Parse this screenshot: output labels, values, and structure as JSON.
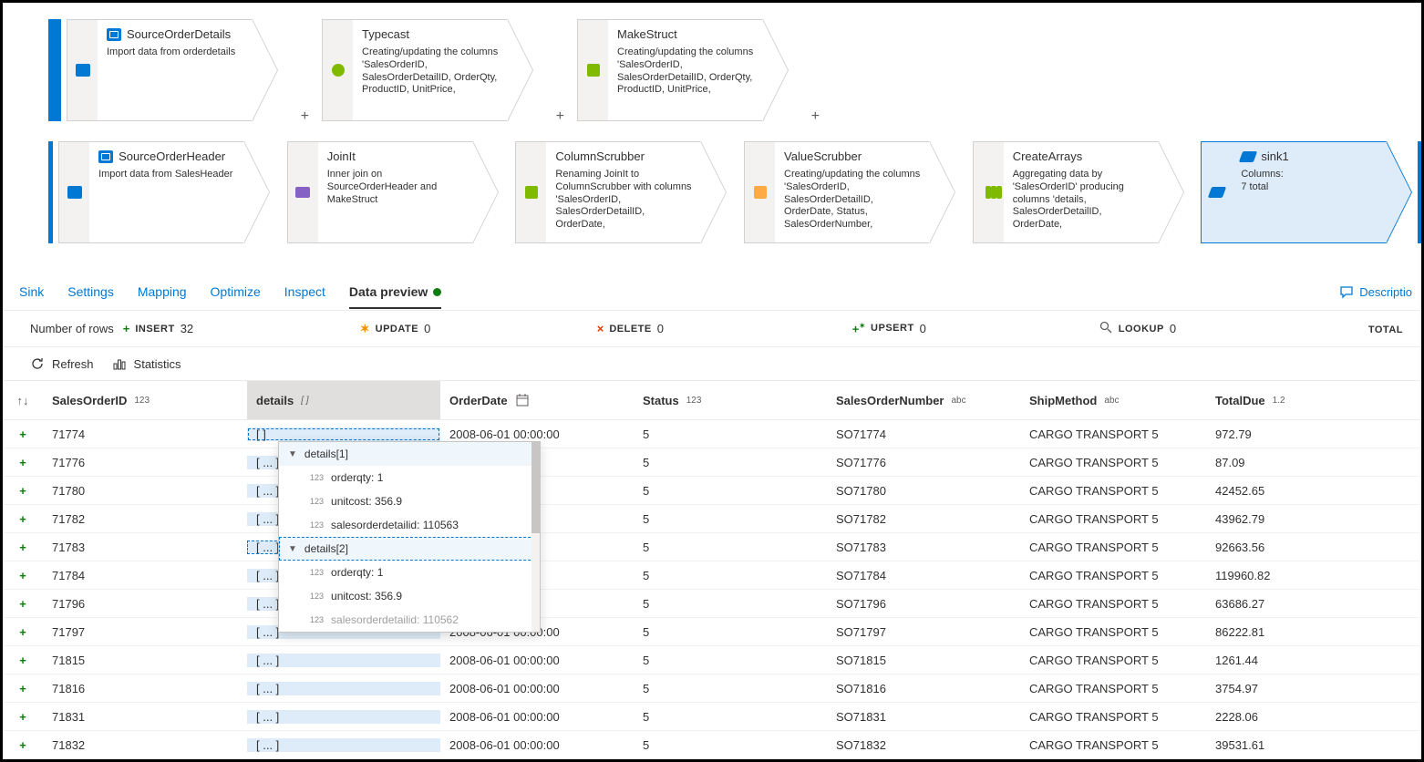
{
  "flow": {
    "rows": [
      {
        "nodes": [
          {
            "title": "SourceOrderDetails",
            "desc": "Import data from orderdetails",
            "icon": "source",
            "badge": "import"
          },
          {
            "title": "Typecast",
            "desc": "Creating/updating the columns 'SalesOrderID, SalesOrderDetailID, OrderQty, ProductID, UnitPrice,",
            "icon": "none",
            "badge": "typecast"
          },
          {
            "title": "MakeStruct",
            "desc": "Creating/updating the columns 'SalesOrderID, SalesOrderDetailID, OrderQty, ProductID, UnitPrice,",
            "icon": "none",
            "badge": "struct"
          }
        ]
      },
      {
        "nodes": [
          {
            "title": "SourceOrderHeader",
            "desc": "Import data from SalesHeader",
            "icon": "source",
            "badge": "import"
          },
          {
            "title": "JoinIt",
            "desc": "Inner join on SourceOrderHeader and MakeStruct",
            "icon": "none",
            "badge": "join"
          },
          {
            "title": "ColumnScrubber",
            "desc": "Renaming JoinIt to ColumnScrubber with columns 'SalesOrderID, SalesOrderDetailID, OrderDate,",
            "icon": "none",
            "badge": "col"
          },
          {
            "title": "ValueScrubber",
            "desc": "Creating/updating the columns 'SalesOrderID, SalesOrderDetailID, OrderDate, Status, SalesOrderNumber,",
            "icon": "none",
            "badge": "val"
          },
          {
            "title": "CreateArrays",
            "desc": "Aggregating data by 'SalesOrderID' producing columns 'details, SalesOrderDetailID, OrderDate,",
            "icon": "none",
            "badge": "agg"
          },
          {
            "title": "sink1",
            "desc": "Columns:\n7 total",
            "icon": "sink",
            "badge": "sink",
            "selected": true
          }
        ]
      }
    ]
  },
  "tabs": {
    "items": [
      "Sink",
      "Settings",
      "Mapping",
      "Optimize",
      "Inspect",
      "Data preview"
    ],
    "active": 5,
    "description_link": "Descriptio"
  },
  "stats": {
    "rows_label": "Number of rows",
    "insert": {
      "label": "INSERT",
      "value": "32"
    },
    "update": {
      "label": "UPDATE",
      "value": "0"
    },
    "delete": {
      "label": "DELETE",
      "value": "0"
    },
    "upsert": {
      "label": "UPSERT",
      "value": "0"
    },
    "lookup": {
      "label": "LOOKUP",
      "value": "0"
    },
    "total_label": "TOTAL"
  },
  "toolbar": {
    "refresh": "Refresh",
    "statistics": "Statistics"
  },
  "columns": [
    {
      "name": "SalesOrderID",
      "type": "123"
    },
    {
      "name": "details",
      "type": "[ ]"
    },
    {
      "name": "OrderDate",
      "type": "date"
    },
    {
      "name": "Status",
      "type": "123"
    },
    {
      "name": "SalesOrderNumber",
      "type": "abc"
    },
    {
      "name": "ShipMethod",
      "type": "abc"
    },
    {
      "name": "TotalDue",
      "type": "1.2"
    }
  ],
  "rows": [
    {
      "id": "71774",
      "details": "[     ]",
      "date": "2008-06-01 00:00:00",
      "status": "5",
      "son": "SO71774",
      "ship": "CARGO TRANSPORT 5",
      "due": "972.79",
      "active": true
    },
    {
      "id": "71776",
      "details": "[ ... ]",
      "date": "00:00",
      "status": "5",
      "son": "SO71776",
      "ship": "CARGO TRANSPORT 5",
      "due": "87.09"
    },
    {
      "id": "71780",
      "details": "[ ... ]",
      "date": "00:00",
      "status": "5",
      "son": "SO71780",
      "ship": "CARGO TRANSPORT 5",
      "due": "42452.65"
    },
    {
      "id": "71782",
      "details": "[ ... ]",
      "date": "00:00",
      "status": "5",
      "son": "SO71782",
      "ship": "CARGO TRANSPORT 5",
      "due": "43962.79"
    },
    {
      "id": "71783",
      "details": "[ ... ]",
      "date": "00:00",
      "status": "5",
      "son": "SO71783",
      "ship": "CARGO TRANSPORT 5",
      "due": "92663.56",
      "sep": true
    },
    {
      "id": "71784",
      "details": "[ ... ]",
      "date": "00:00",
      "status": "5",
      "son": "SO71784",
      "ship": "CARGO TRANSPORT 5",
      "due": "119960.82"
    },
    {
      "id": "71796",
      "details": "[ ... ]",
      "date": "00:00",
      "status": "5",
      "son": "SO71796",
      "ship": "CARGO TRANSPORT 5",
      "due": "63686.27"
    },
    {
      "id": "71797",
      "details": "[ ... ]",
      "date": "2008-06-01 00:00:00",
      "status": "5",
      "son": "SO71797",
      "ship": "CARGO TRANSPORT 5",
      "due": "86222.81"
    },
    {
      "id": "71815",
      "details": "[ ... ]",
      "date": "2008-06-01 00:00:00",
      "status": "5",
      "son": "SO71815",
      "ship": "CARGO TRANSPORT 5",
      "due": "1261.44"
    },
    {
      "id": "71816",
      "details": "[ ... ]",
      "date": "2008-06-01 00:00:00",
      "status": "5",
      "son": "SO71816",
      "ship": "CARGO TRANSPORT 5",
      "due": "3754.97"
    },
    {
      "id": "71831",
      "details": "[ ... ]",
      "date": "2008-06-01 00:00:00",
      "status": "5",
      "son": "SO71831",
      "ship": "CARGO TRANSPORT 5",
      "due": "2228.06"
    },
    {
      "id": "71832",
      "details": "[ ... ]",
      "date": "2008-06-01 00:00:00",
      "status": "5",
      "son": "SO71832",
      "ship": "CARGO TRANSPORT 5",
      "due": "39531.61"
    }
  ],
  "popover": {
    "header1": "details[1]",
    "items1": [
      {
        "k": "orderqty:",
        "v": "1"
      },
      {
        "k": "unitcost:",
        "v": "356.9"
      },
      {
        "k": "salesorderdetailid:",
        "v": "110563"
      }
    ],
    "header2": "details[2]",
    "items2": [
      {
        "k": "orderqty:",
        "v": "1"
      },
      {
        "k": "unitcost:",
        "v": "356.9"
      },
      {
        "k": "salesorderdetailid:",
        "v": "110562"
      }
    ]
  },
  "colors": {
    "accent": "#0078d4",
    "selected_bg": "#deecf9",
    "border": "#d2d0ce",
    "green": "#107c10"
  }
}
